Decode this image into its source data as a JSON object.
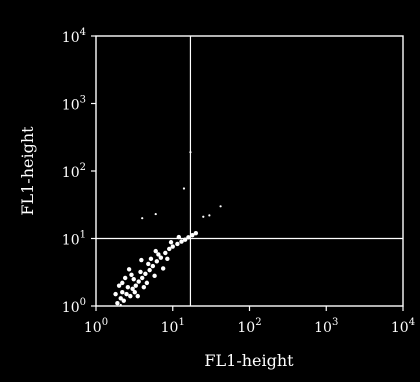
{
  "chart_data": {
    "type": "scatter",
    "title": "",
    "xlabel": "FL1-height",
    "ylabel": "FL1-height",
    "x_scale": "log",
    "y_scale": "log",
    "xlim": [
      1,
      10000
    ],
    "ylim": [
      1,
      10000
    ],
    "x_ticks": [
      {
        "value": 1,
        "base": "10",
        "exp": "0"
      },
      {
        "value": 10,
        "base": "10",
        "exp": "1"
      },
      {
        "value": 100,
        "base": "10",
        "exp": "2"
      },
      {
        "value": 1000,
        "base": "10",
        "exp": "3"
      },
      {
        "value": 10000,
        "base": "10",
        "exp": "4"
      }
    ],
    "y_ticks": [
      {
        "value": 1,
        "base": "10",
        "exp": "0"
      },
      {
        "value": 10,
        "base": "10",
        "exp": "1"
      },
      {
        "value": 100,
        "base": "10",
        "exp": "2"
      },
      {
        "value": 1000,
        "base": "10",
        "exp": "3"
      },
      {
        "value": 10000,
        "base": "10",
        "exp": "4"
      }
    ],
    "quadrant_gates": {
      "x": 17,
      "y": 10
    },
    "grid": false,
    "background_color": "#000000",
    "foreground_color": "#ffffff",
    "series": [
      {
        "color": "#ffffff",
        "points": [
          [
            1.9,
            1.1
          ],
          [
            2.1,
            1.3
          ],
          [
            2.3,
            1.2
          ],
          [
            2.5,
            1.5
          ],
          [
            2.2,
            1.6
          ],
          [
            2.8,
            1.4
          ],
          [
            3.0,
            1.8
          ],
          [
            2.6,
            1.9
          ],
          [
            3.3,
            2.0
          ],
          [
            3.6,
            2.3
          ],
          [
            3.1,
            2.5
          ],
          [
            4.0,
            2.6
          ],
          [
            4.4,
            3.0
          ],
          [
            3.8,
            3.2
          ],
          [
            5.0,
            3.4
          ],
          [
            5.5,
            3.9
          ],
          [
            4.8,
            4.2
          ],
          [
            6.2,
            4.6
          ],
          [
            7.0,
            5.2
          ],
          [
            6.5,
            5.8
          ],
          [
            8.0,
            6.1
          ],
          [
            9.0,
            7.0
          ],
          [
            10.0,
            7.6
          ],
          [
            11.5,
            8.3
          ],
          [
            13.0,
            9.0
          ],
          [
            14.5,
            9.6
          ],
          [
            16.0,
            10.4
          ],
          [
            18.0,
            11.2
          ],
          [
            20.0,
            12.0
          ],
          [
            2.0,
            2.0
          ],
          [
            2.4,
            2.6
          ],
          [
            3.5,
            1.4
          ],
          [
            4.2,
            1.9
          ],
          [
            1.8,
            1.5
          ],
          [
            2.9,
            2.9
          ],
          [
            5.8,
            2.8
          ],
          [
            7.5,
            3.6
          ],
          [
            3.9,
            4.8
          ],
          [
            2.7,
            3.5
          ],
          [
            6.0,
            6.5
          ],
          [
            8.5,
            5.0
          ],
          [
            12.0,
            10.5
          ],
          [
            9.5,
            8.8
          ],
          [
            4.6,
            2.2
          ],
          [
            3.2,
            1.6
          ],
          [
            2.2,
            2.2
          ],
          [
            5.2,
            5.0
          ]
        ]
      }
    ],
    "outliers": [
      [
        17,
        190
      ],
      [
        14,
        55
      ],
      [
        6,
        23
      ],
      [
        4,
        20
      ],
      [
        30,
        22
      ],
      [
        42,
        30
      ],
      [
        25,
        21
      ],
      [
        2.1,
        0.95
      ]
    ]
  }
}
